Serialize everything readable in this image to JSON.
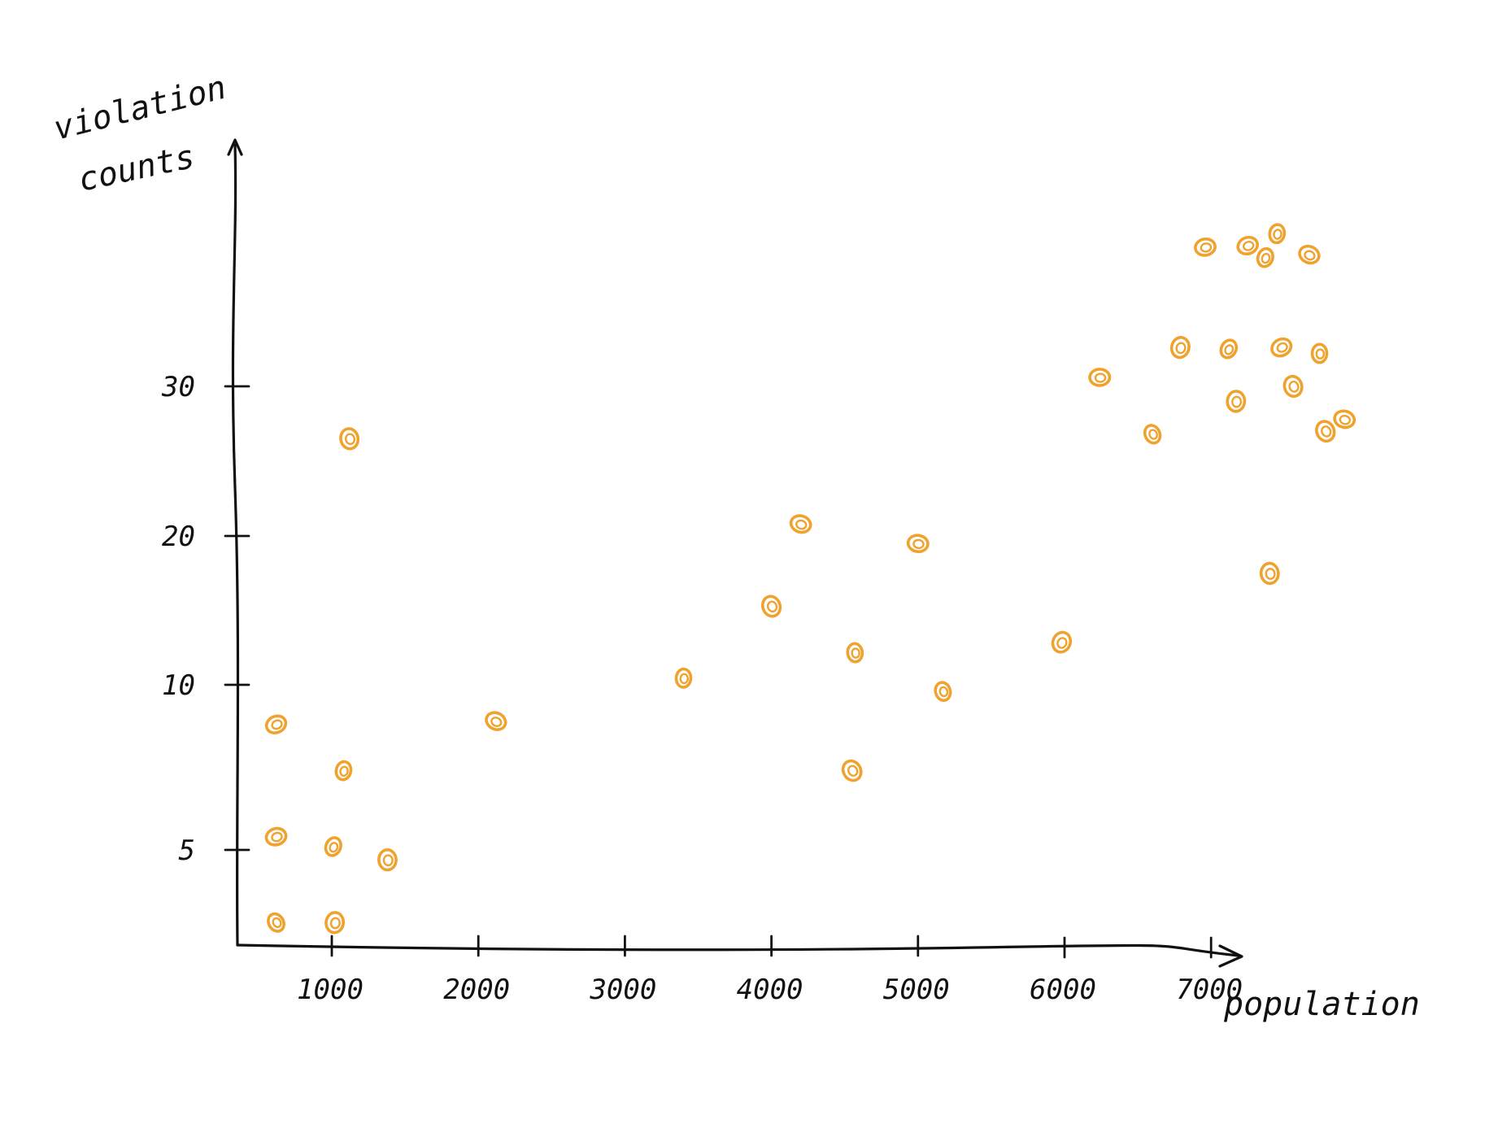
{
  "chart_data": {
    "type": "scatter",
    "title": "",
    "xlabel": "population",
    "ylabel_lines": [
      "violation",
      "counts"
    ],
    "x_ticks": [
      {
        "value": 1000,
        "label": "1000"
      },
      {
        "value": 2000,
        "label": "2000"
      },
      {
        "value": 3000,
        "label": "3000"
      },
      {
        "value": 4000,
        "label": "4000"
      },
      {
        "value": 5000,
        "label": "5000"
      },
      {
        "value": 6000,
        "label": "6000"
      },
      {
        "value": 7000,
        "label": "7000"
      }
    ],
    "y_ticks": [
      {
        "value": 5,
        "label": "5"
      },
      {
        "value": 10,
        "label": "10"
      },
      {
        "value": 20,
        "label": "20"
      },
      {
        "value": 30,
        "label": "30"
      }
    ],
    "marker_color": "#F0A22E",
    "grid": false,
    "legend": "none",
    "points": [
      {
        "x": 620,
        "y": 2.8
      },
      {
        "x": 1020,
        "y": 2.8
      },
      {
        "x": 620,
        "y": 5.4
      },
      {
        "x": 1010,
        "y": 5.1
      },
      {
        "x": 1380,
        "y": 4.7
      },
      {
        "x": 620,
        "y": 8.8
      },
      {
        "x": 1080,
        "y": 7.4
      },
      {
        "x": 1120,
        "y": 26.5
      },
      {
        "x": 2120,
        "y": 8.9
      },
      {
        "x": 3400,
        "y": 10.5
      },
      {
        "x": 4000,
        "y": 15.3
      },
      {
        "x": 4200,
        "y": 20.8
      },
      {
        "x": 4570,
        "y": 12.2
      },
      {
        "x": 4550,
        "y": 7.4
      },
      {
        "x": 5000,
        "y": 19.5
      },
      {
        "x": 5170,
        "y": 9.8
      },
      {
        "x": 5980,
        "y": 12.9
      },
      {
        "x": 6240,
        "y": 30.6
      },
      {
        "x": 6600,
        "y": 26.8
      },
      {
        "x": 6790,
        "y": 32.6
      },
      {
        "x": 6960,
        "y": 39.3
      },
      {
        "x": 7120,
        "y": 32.5
      },
      {
        "x": 7170,
        "y": 29.0
      },
      {
        "x": 7250,
        "y": 39.4
      },
      {
        "x": 7370,
        "y": 38.6
      },
      {
        "x": 7400,
        "y": 17.5
      },
      {
        "x": 7480,
        "y": 32.6
      },
      {
        "x": 7450,
        "y": 40.2
      },
      {
        "x": 7560,
        "y": 30.0
      },
      {
        "x": 7670,
        "y": 38.8
      },
      {
        "x": 7740,
        "y": 32.2
      },
      {
        "x": 7780,
        "y": 27.0
      },
      {
        "x": 7910,
        "y": 27.8
      }
    ]
  }
}
